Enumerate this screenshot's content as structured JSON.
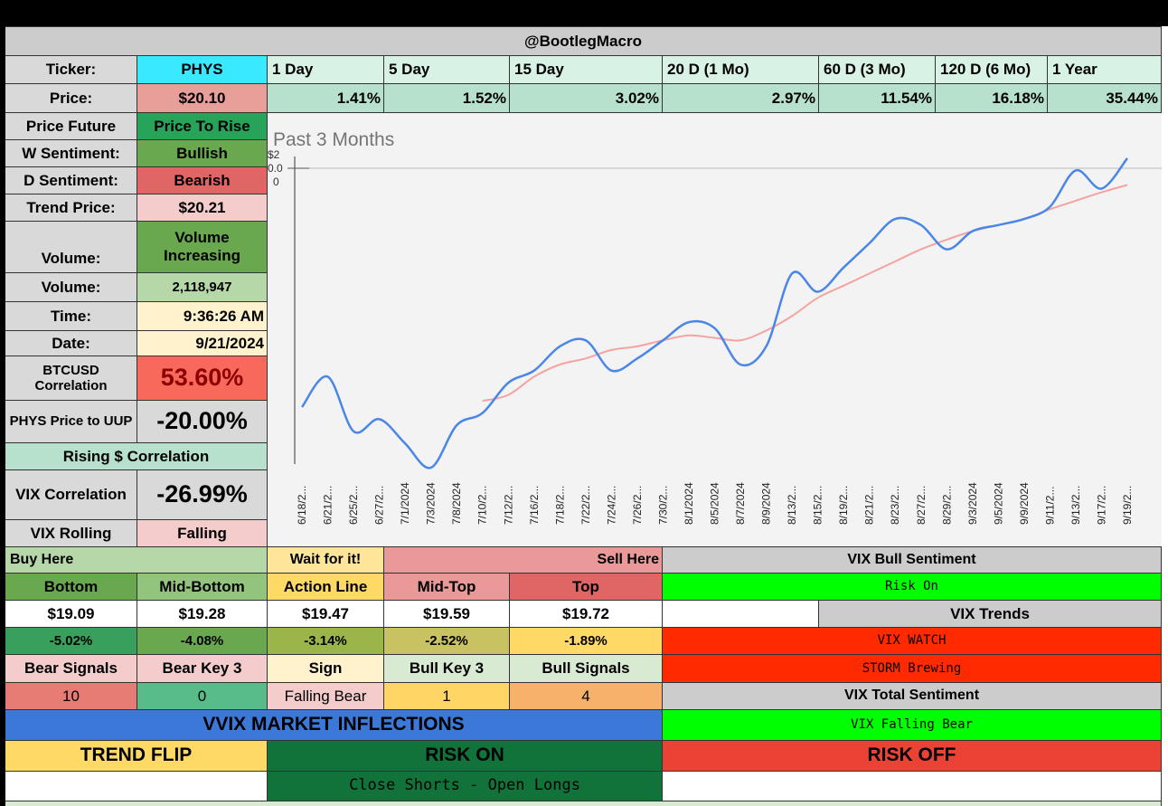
{
  "header": {
    "handle": "@BootlegMacro"
  },
  "ticker": {
    "label": "Ticker:",
    "value": "PHYS"
  },
  "periods": {
    "labels": [
      "1 Day",
      "5 Day",
      "15 Day",
      "20 D (1 Mo)",
      "60 D (3 Mo)",
      "120 D (6 Mo)",
      "1 Year"
    ],
    "values": [
      "1.41%",
      "1.52%",
      "3.02%",
      "2.97%",
      "11.54%",
      "16.18%",
      "35.44%"
    ]
  },
  "left": {
    "price": {
      "label": "Price:",
      "value": "$20.10"
    },
    "price_future": {
      "label": "Price Future",
      "value": "Price To Rise"
    },
    "w_sentiment": {
      "label": "W Sentiment:",
      "value": "Bullish"
    },
    "d_sentiment": {
      "label": "D Sentiment:",
      "value": "Bearish"
    },
    "trend_price": {
      "label": "Trend Price:",
      "value": "$20.21"
    },
    "volume_state": {
      "label": "Volume:",
      "value": "Volume Increasing"
    },
    "volume": {
      "label": "Volume:",
      "value": "2,118,947"
    },
    "time": {
      "label": "Time:",
      "value": "9:36:26 AM"
    },
    "date": {
      "label": "Date:",
      "value": "9/21/2024"
    },
    "btc_corr": {
      "label": "BTCUSD Correlation",
      "value": "53.60%"
    },
    "uup": {
      "label": "PHYS Price to UUP",
      "value": "-20.00%"
    },
    "rising_corr": "Rising $ Correlation",
    "vix_corr": {
      "label": "VIX Correlation",
      "value": "-26.99%"
    },
    "vix_rolling": {
      "label": "VIX Rolling",
      "value": "Falling"
    }
  },
  "levels": {
    "buy_here": "Buy Here",
    "wait": "Wait for it!",
    "sell_here": "Sell Here",
    "headers": [
      "Bottom",
      "Mid-Bottom",
      "Action Line",
      "Mid-Top",
      "Top"
    ],
    "prices": [
      "$19.09",
      "$19.28",
      "$19.47",
      "$19.59",
      "$19.72"
    ],
    "pcts": [
      "-5.02%",
      "-4.08%",
      "-3.14%",
      "-2.52%",
      "-1.89%"
    ],
    "signal_headers": [
      "Bear Signals",
      "Bear Key 3",
      "Sign",
      "Bull Key 3",
      "Bull Signals"
    ],
    "signal_values": [
      "10",
      "0",
      "Falling Bear",
      "1",
      "4"
    ]
  },
  "vix": {
    "bull_sentiment_label": "VIX Bull Sentiment",
    "risk_on": "Risk On",
    "trends_label": "VIX Trends",
    "watch": "VIX WATCH",
    "storm": "STORM Brewing",
    "total_label": "VIX Total Sentiment",
    "falling_bear": "VIX Falling Bear"
  },
  "vvix": {
    "title": "VVIX MARKET INFLECTIONS",
    "trend_flip": "TREND FLIP",
    "risk_on": "RISK ON",
    "risk_off": "RISK OFF",
    "note": "Close Shorts - Open Longs"
  },
  "colors": {
    "price_line": "#4a86e8",
    "trend_line": "#f4a3a0",
    "green_bright": "#00ff00",
    "red_bright": "#ff2a00",
    "blue_banner": "#3c78d8"
  },
  "chart_data": {
    "type": "line",
    "title": "Past 3 Months",
    "y_tick_labels": [
      "$2",
      "0.0",
      "0"
    ],
    "x": [
      "6/18/2...",
      "6/21/2...",
      "6/25/2...",
      "6/27/2...",
      "7/1/2024",
      "7/3/2024",
      "7/8/2024",
      "7/10/2...",
      "7/12/2...",
      "7/16/2...",
      "7/18/2...",
      "7/22/2...",
      "7/24/2...",
      "7/26/2...",
      "7/30/2...",
      "8/1/2024",
      "8/5/2024",
      "8/7/2024",
      "8/9/2024",
      "8/13/2...",
      "8/15/2...",
      "8/19/2...",
      "8/21/2...",
      "8/23/2...",
      "8/27/2...",
      "8/29/2...",
      "9/3/2024",
      "9/5/2024",
      "9/9/2024",
      "9/11/2...",
      "9/13/2...",
      "9/17/2...",
      "9/19/2..."
    ],
    "series": [
      {
        "values": [
          18.05,
          18.3,
          17.85,
          17.95,
          17.75,
          17.55,
          17.9,
          18.0,
          18.25,
          18.35,
          18.55,
          18.6,
          18.35,
          18.45,
          18.6,
          18.75,
          18.7,
          18.4,
          18.55,
          19.15,
          19.0,
          19.2,
          19.4,
          19.6,
          19.55,
          19.35,
          19.5,
          19.55,
          19.6,
          19.7,
          20.0,
          19.85,
          20.1
        ]
      },
      {
        "values": [
          null,
          null,
          null,
          null,
          null,
          null,
          null,
          18.1,
          18.15,
          18.3,
          18.4,
          18.45,
          18.52,
          18.55,
          18.6,
          18.64,
          18.62,
          18.6,
          18.68,
          18.8,
          18.95,
          19.05,
          19.15,
          19.25,
          19.35,
          19.43,
          19.5,
          19.55,
          19.6,
          19.68,
          19.75,
          19.82,
          19.88
        ]
      }
    ]
  }
}
